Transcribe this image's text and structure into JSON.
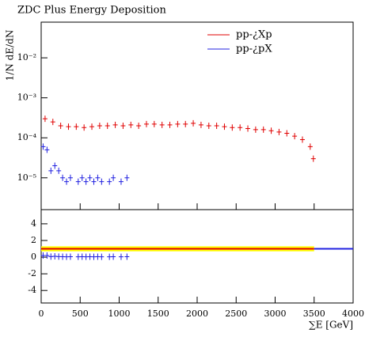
{
  "chart_data": [
    {
      "type": "log-scatter",
      "title": "ZDC Plus Energy Deposition",
      "ylabel": "1/N dE/dN",
      "xlim": [
        0,
        4000
      ],
      "ylim": [
        1.6e-06,
        0.078
      ],
      "log_y": true,
      "yticks": [
        {
          "value": 0.01,
          "label": "10⁻²"
        },
        {
          "value": 0.001,
          "label": "10⁻³"
        },
        {
          "value": 0.0001,
          "label": "10⁻⁴"
        },
        {
          "value": 1e-05,
          "label": "10⁻⁵"
        }
      ],
      "xticks": [
        0,
        500,
        1000,
        1500,
        2000,
        2500,
        3000,
        3500,
        4000
      ],
      "series": [
        {
          "name": "pp-¿Xp",
          "color": "#e00000",
          "x": [
            50,
            150,
            250,
            350,
            450,
            550,
            650,
            750,
            850,
            950,
            1050,
            1150,
            1250,
            1350,
            1450,
            1550,
            1650,
            1750,
            1850,
            1950,
            2050,
            2150,
            2250,
            2350,
            2450,
            2550,
            2650,
            2750,
            2850,
            2950,
            3050,
            3150,
            3250,
            3350,
            3450,
            3490
          ],
          "values": [
            0.0003,
            0.00025,
            0.0002,
            0.00019,
            0.00019,
            0.00018,
            0.00019,
            0.0002,
            0.0002,
            0.00021,
            0.0002,
            0.00021,
            0.0002,
            0.00022,
            0.00022,
            0.00021,
            0.00021,
            0.00022,
            0.00022,
            0.00023,
            0.00021,
            0.0002,
            0.0002,
            0.00019,
            0.00018,
            0.00018,
            0.00017,
            0.00016,
            0.00016,
            0.00015,
            0.00014,
            0.00013,
            0.00011,
            9e-05,
            6e-05,
            3e-05
          ]
        },
        {
          "name": "pp-¿pX",
          "color": "#2020e0",
          "x": [
            25,
            75,
            125,
            175,
            225,
            275,
            325,
            375,
            475,
            525,
            575,
            625,
            675,
            725,
            775,
            875,
            925,
            1025,
            1100
          ],
          "values": [
            6e-05,
            5e-05,
            1.5e-05,
            2e-05,
            1.5e-05,
            1e-05,
            8e-06,
            1e-05,
            8e-06,
            1e-05,
            8e-06,
            1e-05,
            8e-06,
            1e-05,
            8e-06,
            8e-06,
            1e-05,
            8e-06,
            1e-05
          ]
        }
      ]
    },
    {
      "type": "ratio",
      "xlabel": "∑E [GeV]",
      "xlim": [
        0,
        4000
      ],
      "ylim": [
        -5.5,
        5.7
      ],
      "yticks": [
        4,
        2,
        0,
        -2,
        -4
      ],
      "xticks": [
        0,
        500,
        1000,
        1500,
        2000,
        2500,
        3000,
        3500,
        4000
      ],
      "band": {
        "x": [
          0,
          3500
        ],
        "low": 0.7,
        "high": 1.3,
        "color": "#ffff00"
      },
      "series": [
        {
          "color": "#e00000",
          "x": [
            0,
            3500
          ],
          "values": [
            1,
            1
          ]
        },
        {
          "color": "#2020e0",
          "x": [
            3500,
            4000
          ],
          "values": [
            1,
            1
          ]
        },
        {
          "color": "#2020e0",
          "x": [
            25,
            75,
            125,
            175,
            225,
            275,
            325,
            375,
            475,
            525,
            575,
            625,
            675,
            725,
            775,
            875,
            925,
            1025,
            1100
          ],
          "values": [
            0.2,
            0.2,
            0.07,
            0.1,
            0.07,
            0.05,
            0.04,
            0.05,
            0.04,
            0.05,
            0.04,
            0.05,
            0.04,
            0.05,
            0.04,
            0.04,
            0.05,
            0.04,
            0.05
          ]
        }
      ]
    }
  ]
}
